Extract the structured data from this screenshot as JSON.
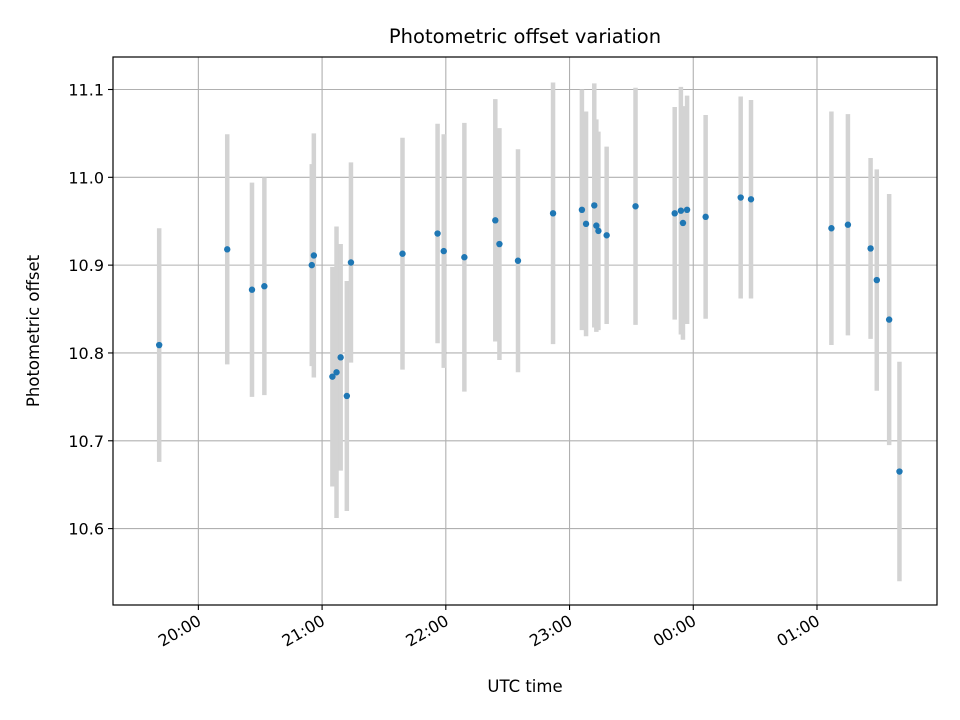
{
  "chart_data": {
    "type": "scatter",
    "title": "Photometric offset variation",
    "xlabel": "UTC time",
    "ylabel": "Photometric offset",
    "x_tick_labels": [
      "20:00",
      "21:00",
      "22:00",
      "23:00",
      "00:00",
      "01:00"
    ],
    "x_ticks_hours": [
      20,
      21,
      22,
      23,
      24,
      25
    ],
    "y_ticks": [
      10.6,
      10.7,
      10.8,
      10.9,
      11.0,
      11.1
    ],
    "y_tick_labels": [
      "10.6",
      "10.7",
      "10.8",
      "10.9",
      "11.0",
      "11.1"
    ],
    "xlim_hours": [
      19.31,
      25.97
    ],
    "ylim": [
      10.513,
      11.137
    ],
    "grid": true,
    "point_color": "#1f77b4",
    "errorbar_color": "#d3d3d3",
    "points": [
      {
        "t": "19:41",
        "y": 10.809,
        "err": 0.133
      },
      {
        "t": "20:14",
        "y": 10.918,
        "err": 0.131
      },
      {
        "t": "20:26",
        "y": 10.872,
        "err": 0.122
      },
      {
        "t": "20:32",
        "y": 10.876,
        "err": 0.124
      },
      {
        "t": "20:55",
        "y": 10.9,
        "err": 0.115
      },
      {
        "t": "20:56",
        "y": 10.911,
        "err": 0.139
      },
      {
        "t": "21:05",
        "y": 10.773,
        "err": 0.125
      },
      {
        "t": "21:07",
        "y": 10.778,
        "err": 0.166
      },
      {
        "t": "21:09",
        "y": 10.795,
        "err": 0.129
      },
      {
        "t": "21:12",
        "y": 10.751,
        "err": 0.131
      },
      {
        "t": "21:14",
        "y": 10.903,
        "err": 0.114
      },
      {
        "t": "21:39",
        "y": 10.913,
        "err": 0.132
      },
      {
        "t": "21:56",
        "y": 10.936,
        "err": 0.125
      },
      {
        "t": "21:59",
        "y": 10.916,
        "err": 0.133
      },
      {
        "t": "22:09",
        "y": 10.909,
        "err": 0.153
      },
      {
        "t": "22:24",
        "y": 10.951,
        "err": 0.138
      },
      {
        "t": "22:26",
        "y": 10.924,
        "err": 0.132
      },
      {
        "t": "22:35",
        "y": 10.905,
        "err": 0.127
      },
      {
        "t": "22:52",
        "y": 10.959,
        "err": 0.149
      },
      {
        "t": "23:06",
        "y": 10.963,
        "err": 0.137
      },
      {
        "t": "23:08",
        "y": 10.947,
        "err": 0.128
      },
      {
        "t": "23:12",
        "y": 10.968,
        "err": 0.139
      },
      {
        "t": "23:13",
        "y": 10.945,
        "err": 0.121
      },
      {
        "t": "23:14",
        "y": 10.939,
        "err": 0.113
      },
      {
        "t": "23:18",
        "y": 10.934,
        "err": 0.101
      },
      {
        "t": "23:32",
        "y": 10.967,
        "err": 0.135
      },
      {
        "t": "23:51",
        "y": 10.959,
        "err": 0.121
      },
      {
        "t": "23:54",
        "y": 10.962,
        "err": 0.141
      },
      {
        "t": "23:55",
        "y": 10.948,
        "err": 0.133
      },
      {
        "t": "23:57",
        "y": 10.963,
        "err": 0.13
      },
      {
        "t": "00:06",
        "y": 10.955,
        "err": 0.116
      },
      {
        "t": "00:23",
        "y": 10.977,
        "err": 0.115
      },
      {
        "t": "00:28",
        "y": 10.975,
        "err": 0.113
      },
      {
        "t": "01:07",
        "y": 10.942,
        "err": 0.133
      },
      {
        "t": "01:15",
        "y": 10.946,
        "err": 0.126
      },
      {
        "t": "01:26",
        "y": 10.919,
        "err": 0.103
      },
      {
        "t": "01:29",
        "y": 10.883,
        "err": 0.126
      },
      {
        "t": "01:35",
        "y": 10.838,
        "err": 0.143
      },
      {
        "t": "01:40",
        "y": 10.665,
        "err": 0.125
      }
    ]
  }
}
